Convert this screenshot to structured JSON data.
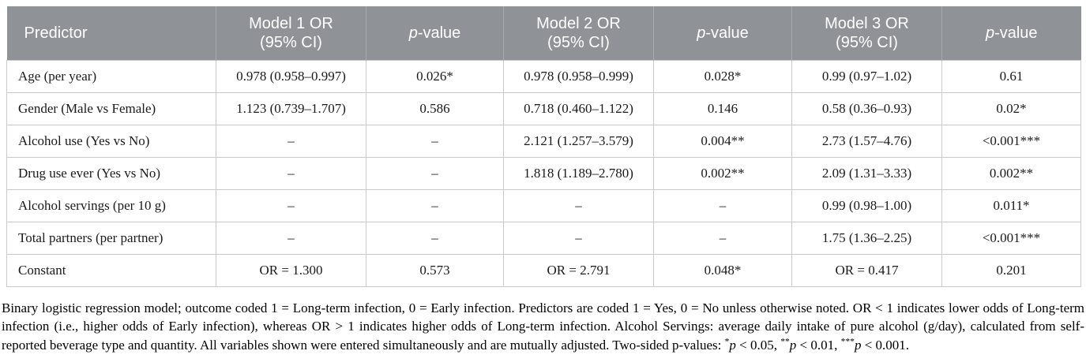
{
  "colors": {
    "header_bg": "#8f9397",
    "header_text": "#ffffff",
    "header_divider": "#a7abaf",
    "grid_line": "#c8cacc",
    "body_text": "#1a1a1a"
  },
  "table": {
    "header": [
      {
        "pre": "",
        "text": "Predictor",
        "line2": ""
      },
      {
        "pre": "",
        "text": "Model 1 OR",
        "line2": "(95% CI)"
      },
      {
        "pre": "p",
        "text": "-value",
        "line2": ""
      },
      {
        "pre": "",
        "text": "Model 2 OR",
        "line2": "(95% CI)"
      },
      {
        "pre": "p",
        "text": "-value",
        "line2": ""
      },
      {
        "pre": "",
        "text": "Model 3 OR",
        "line2": "(95% CI)"
      },
      {
        "pre": "p",
        "text": "-value",
        "line2": ""
      }
    ],
    "rows": [
      [
        "Age (per year)",
        "0.978 (0.958–0.997)",
        "0.026*",
        "0.978 (0.958–0.999)",
        "0.028*",
        "0.99 (0.97–1.02)",
        "0.61"
      ],
      [
        "Gender (Male vs Female)",
        "1.123 (0.739–1.707)",
        "0.586",
        "0.718 (0.460–1.122)",
        "0.146",
        "0.58 (0.36–0.93)",
        "0.02*"
      ],
      [
        "Alcohol use (Yes vs No)",
        "–",
        "–",
        "2.121 (1.257–3.579)",
        "0.004**",
        "2.73 (1.57–4.76)",
        "<0.001***"
      ],
      [
        "Drug use ever (Yes vs No)",
        "–",
        "–",
        "1.818 (1.189–2.780)",
        "0.002**",
        "2.09 (1.31–3.33)",
        "0.002**"
      ],
      [
        "Alcohol servings (per 10 g)",
        "–",
        "–",
        "–",
        "–",
        "0.99 (0.98–1.00)",
        "0.011*"
      ],
      [
        "Total partners (per partner)",
        "–",
        "–",
        "–",
        "–",
        "1.75 (1.36–2.25)",
        "<0.001***"
      ],
      [
        "Constant",
        "OR = 1.300",
        "0.573",
        "OR = 2.791",
        "0.048*",
        "OR = 0.417",
        "0.201"
      ]
    ]
  },
  "footnote": {
    "text_main": "Binary logistic regression model; outcome coded 1 = Long-term infection, 0 = Early infection. Predictors are coded 1 = Yes, 0 = No unless otherwise noted. OR < 1 indicates lower odds of Long-term infection (i.e., higher odds of Early infection), whereas OR > 1 indicates higher odds of Long-term infection. Alcohol Servings: average daily intake of pure alcohol (g/day), calculated from self-reported beverage type and quantity. All variables shown were entered simultaneously and are mutually adjusted. Two-sided p-values: ",
    "sig": [
      {
        "stars": "*",
        "p": "p",
        "rest": " < 0.05, "
      },
      {
        "stars": "**",
        "p": "p",
        "rest": " < 0.01, "
      },
      {
        "stars": "***",
        "p": "p",
        "rest": " < 0.001."
      }
    ]
  }
}
